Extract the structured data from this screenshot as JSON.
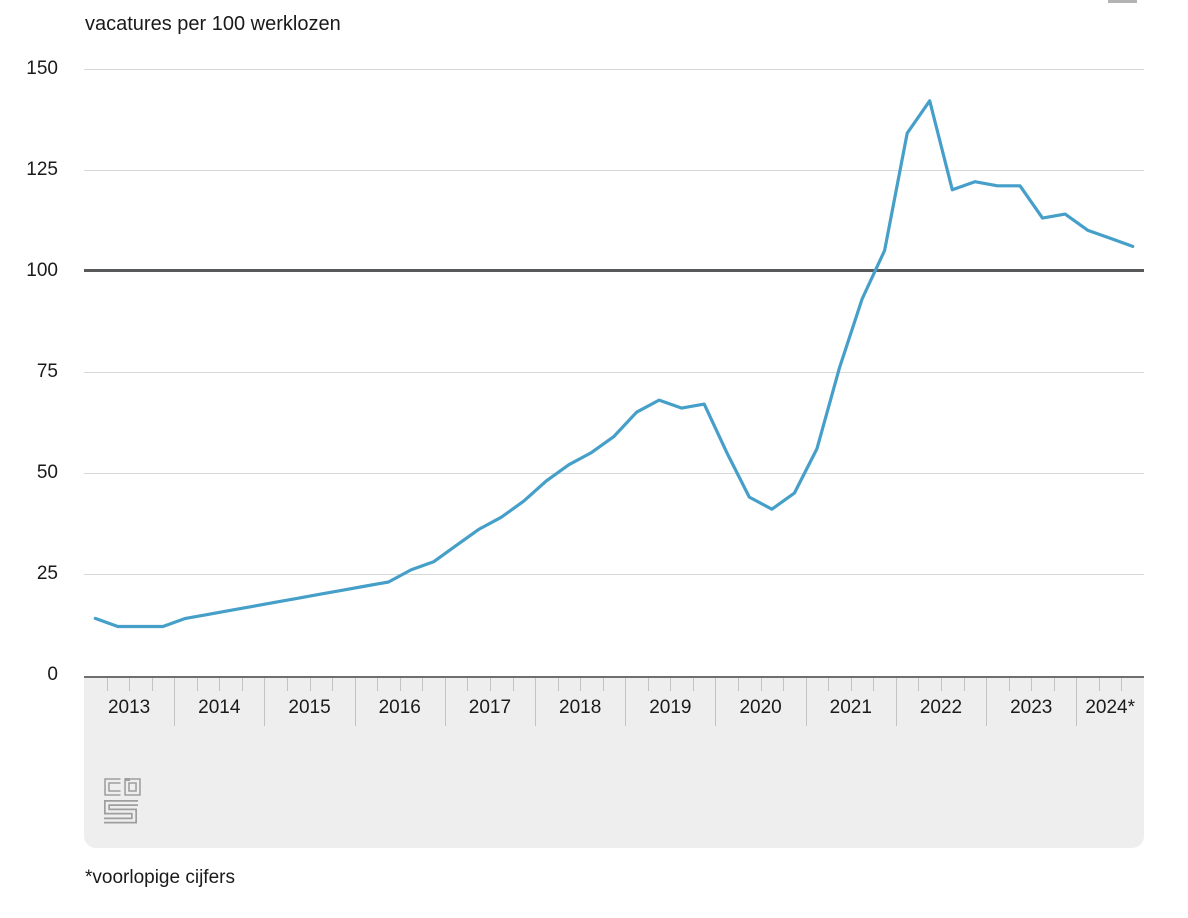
{
  "header": {
    "title": "vacatures per 100 werklozen"
  },
  "footnote": "*voorlopige cijfers",
  "logo": {
    "name": "cbs-logo",
    "color": "#9e9e9e"
  },
  "menu_icon_color": "#b3b3b3",
  "chart_data": {
    "type": "line",
    "title": "vacatures per 100 werklozen",
    "xlabel": "",
    "ylabel": "vacatures per 100 werklozen",
    "ylim": [
      0,
      150
    ],
    "yticks": [
      0,
      25,
      50,
      75,
      100,
      125,
      150
    ],
    "reference_line": 100,
    "grid": true,
    "legend": "none",
    "x_frequency": "quarterly",
    "years": [
      {
        "label": "2013",
        "quarters": 4
      },
      {
        "label": "2014",
        "quarters": 4
      },
      {
        "label": "2015",
        "quarters": 4
      },
      {
        "label": "2016",
        "quarters": 4
      },
      {
        "label": "2017",
        "quarters": 4
      },
      {
        "label": "2018",
        "quarters": 4
      },
      {
        "label": "2019",
        "quarters": 4
      },
      {
        "label": "2020",
        "quarters": 4
      },
      {
        "label": "2021",
        "quarters": 4
      },
      {
        "label": "2022",
        "quarters": 4
      },
      {
        "label": "2023",
        "quarters": 4
      },
      {
        "label": "2024*",
        "quarters": 3
      }
    ],
    "values": [
      14,
      12,
      12,
      12,
      14,
      15,
      16,
      17,
      18,
      19,
      20,
      21,
      22,
      23,
      26,
      28,
      32,
      36,
      39,
      43,
      48,
      52,
      55,
      59,
      65,
      68,
      66,
      67,
      55,
      44,
      41,
      45,
      56,
      76,
      93,
      105,
      134,
      142,
      120,
      122,
      121,
      121,
      113,
      114,
      110,
      108,
      106
    ],
    "colors": {
      "line": "#459fc9",
      "reference_line": "#58595b",
      "gridline": "#d8d8d8",
      "axis_band": "#eeeeee",
      "axis_border": "#6f6f6f",
      "tick": "#c3c3c3"
    }
  }
}
